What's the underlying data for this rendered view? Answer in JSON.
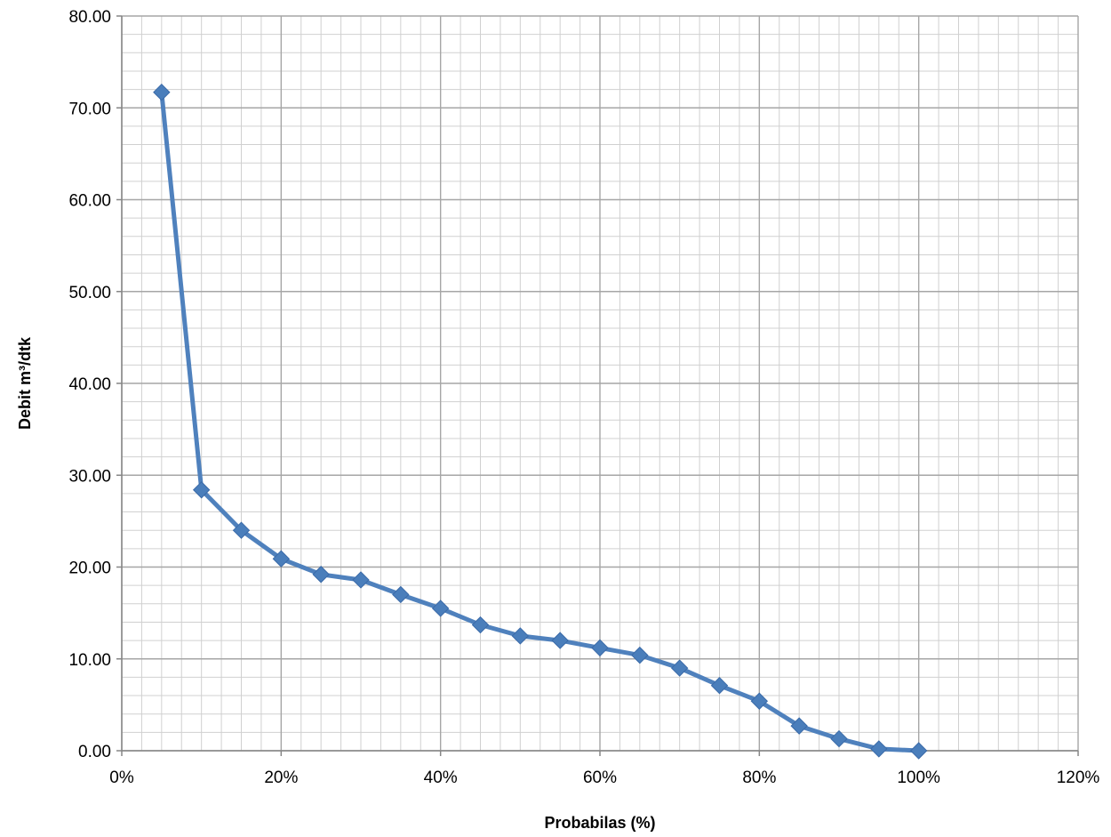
{
  "chart_data": {
    "type": "line",
    "title": "",
    "xlabel": "Probabilas (%)",
    "ylabel": "Debit m³/dtk",
    "xlim": [
      0,
      120
    ],
    "ylim": [
      0,
      80
    ],
    "x_ticks": [
      "0%",
      "20%",
      "40%",
      "60%",
      "80%",
      "100%",
      "120%"
    ],
    "y_ticks": [
      "0.00",
      "10.00",
      "20.00",
      "30.00",
      "40.00",
      "50.00",
      "60.00",
      "70.00",
      "80.00"
    ],
    "grid": true,
    "legend": "none",
    "marker": "diamond",
    "series_color": "#4F81BD",
    "marker_color": "#4A7EBB",
    "grid_color": "#A6A6A6",
    "series": [
      {
        "x": [
          5,
          10,
          15,
          20,
          25,
          30,
          35,
          40,
          45,
          50,
          55,
          60,
          65,
          70,
          75,
          80,
          85,
          90,
          95,
          100
        ],
        "values": [
          71.7,
          28.4,
          24.0,
          20.9,
          19.2,
          18.6,
          17.0,
          15.5,
          13.7,
          12.5,
          12.0,
          11.2,
          10.4,
          9.0,
          7.1,
          5.4,
          2.7,
          1.3,
          0.2,
          0.0
        ]
      }
    ]
  }
}
